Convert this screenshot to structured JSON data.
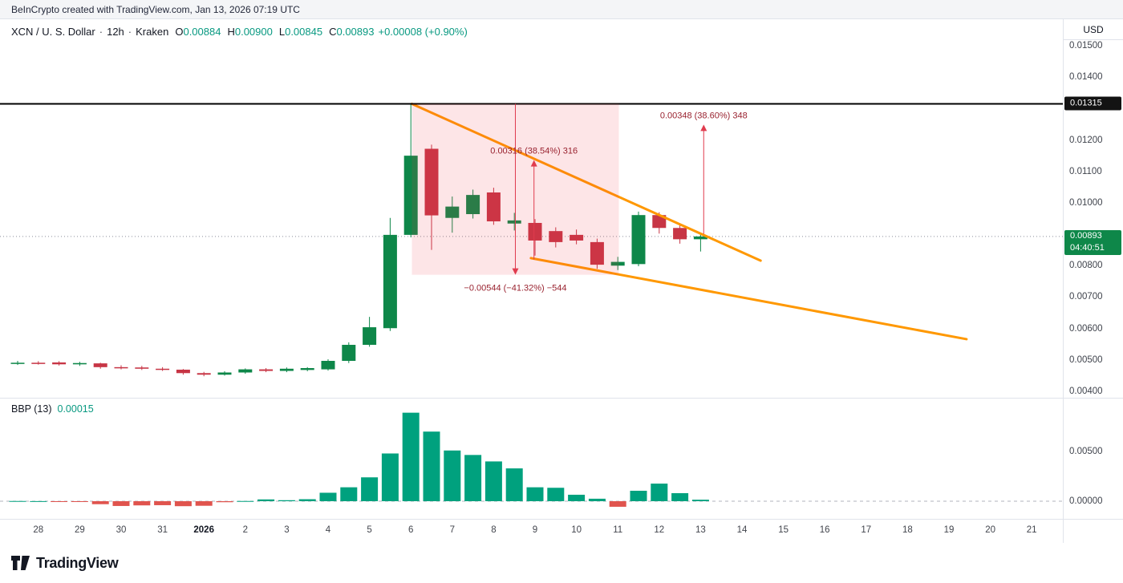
{
  "header": {
    "attribution": "BeInCrypto created with TradingView.com, Jan 13, 2026 07:19 UTC"
  },
  "legend": {
    "symbol": "XCN / U. S. Dollar",
    "sep": "·",
    "interval": "12h",
    "exchange": "Kraken",
    "o_label": "O",
    "open": "0.00884",
    "h_label": "H",
    "high": "0.00900",
    "l_label": "L",
    "low": "0.00845",
    "c_label": "C",
    "close": "0.00893",
    "change": "+0.00008 (+0.90%)"
  },
  "price_axis": {
    "currency": "USD",
    "black_badge": {
      "text": "0.01315"
    },
    "current_badge": {
      "price_text": "0.00893",
      "countdown": "04:40:51"
    }
  },
  "indicator_legend": {
    "title": "BBP (13)",
    "value": "0.00015"
  },
  "footer": {
    "brand": "TradingView"
  },
  "colors": {
    "up": "#0e8749",
    "down": "#c73545",
    "bbp_up": "#00a17e",
    "bbp_down": "#e0544e",
    "value_text": "#089981",
    "trendline": "#ff9800",
    "measure_fill": "rgba(242,54,69,0.13)",
    "measure_text": "#99222f",
    "measure_arrow": "#e03b4e",
    "level": "#000000",
    "dotted": "#8b8f9b",
    "border": "#e0e3eb",
    "zero_dash": "#b0b3bc",
    "axis_text": "#3f434c"
  },
  "chart_data": {
    "type": "candlestick",
    "title": "XCN / U. S. Dollar · 12h · Kraken",
    "ylabel": "USD",
    "price_range_shown": [
      0.004,
      0.0155
    ],
    "grid": false,
    "candles_columns": [
      "time",
      "open",
      "high",
      "low",
      "close"
    ],
    "candles": [
      [
        "12-27 12:00",
        0.0049,
        0.00497,
        0.00484,
        0.00491
      ],
      [
        "12-28 00:00",
        0.00491,
        0.00496,
        0.00485,
        0.00489
      ],
      [
        "12-28 12:00",
        0.00492,
        0.00496,
        0.00482,
        0.00486
      ],
      [
        "12-29 00:00",
        0.00486,
        0.00494,
        0.00481,
        0.0049
      ],
      [
        "12-29 12:00",
        0.00489,
        0.00491,
        0.00472,
        0.00477
      ],
      [
        "12-30 00:00",
        0.00477,
        0.00483,
        0.0047,
        0.00476
      ],
      [
        "12-30 12:00",
        0.00476,
        0.00481,
        0.00468,
        0.00472
      ],
      [
        "12-31 00:00",
        0.00472,
        0.00477,
        0.00465,
        0.00469
      ],
      [
        "12-31 12:00",
        0.00469,
        0.00471,
        0.00453,
        0.00458
      ],
      [
        "01-01 00:00",
        0.00458,
        0.00462,
        0.00448,
        0.00453
      ],
      [
        "01-01 12:00",
        0.00453,
        0.00464,
        0.0045,
        0.0046
      ],
      [
        "01-02 00:00",
        0.0046,
        0.00473,
        0.00456,
        0.0047
      ],
      [
        "01-02 12:00",
        0.0047,
        0.00474,
        0.00461,
        0.00465
      ],
      [
        "01-03 00:00",
        0.00465,
        0.00476,
        0.00461,
        0.00472
      ],
      [
        "01-03 12:00",
        0.00468,
        0.00477,
        0.00464,
        0.00474
      ],
      [
        "01-04 00:00",
        0.0047,
        0.00502,
        0.00466,
        0.00497
      ],
      [
        "01-04 12:00",
        0.00497,
        0.00556,
        0.0049,
        0.00548
      ],
      [
        "01-05 00:00",
        0.00548,
        0.00637,
        0.00542,
        0.00604
      ],
      [
        "01-05 12:00",
        0.00601,
        0.00952,
        0.00592,
        0.00898
      ],
      [
        "01-06 00:00",
        0.00898,
        0.01315,
        0.0089,
        0.0115
      ],
      [
        "01-06 12:00",
        0.01172,
        0.01185,
        0.0085,
        0.0096
      ],
      [
        "01-07 00:00",
        0.00952,
        0.0102,
        0.00905,
        0.00988
      ],
      [
        "01-07 12:00",
        0.00964,
        0.01042,
        0.0095,
        0.01025
      ],
      [
        "01-08 00:00",
        0.01033,
        0.01048,
        0.0093,
        0.00941
      ],
      [
        "01-08 12:00",
        0.00934,
        0.00968,
        0.00912,
        0.00944
      ],
      [
        "01-09 00:00",
        0.00936,
        0.00948,
        0.00832,
        0.0088
      ],
      [
        "01-09 12:00",
        0.0091,
        0.00922,
        0.00858,
        0.00875
      ],
      [
        "01-10 00:00",
        0.00898,
        0.00915,
        0.00868,
        0.0088
      ],
      [
        "01-10 12:00",
        0.00875,
        0.00886,
        0.0079,
        0.00803
      ],
      [
        "01-11 00:00",
        0.008,
        0.00828,
        0.00786,
        0.00812
      ],
      [
        "01-11 12:00",
        0.00805,
        0.00972,
        0.00798,
        0.00961
      ],
      [
        "01-12 00:00",
        0.00961,
        0.0097,
        0.00902,
        0.0092
      ],
      [
        "01-12 12:00",
        0.0092,
        0.00932,
        0.0087,
        0.00884
      ],
      [
        "01-13 00:00",
        0.00884,
        0.009,
        0.00845,
        0.00893
      ]
    ],
    "indicator": {
      "name": "BBP",
      "length": 13,
      "current_value": 0.00015,
      "values": [
        2e-05,
        1e-05,
        -2e-05,
        -1e-05,
        -0.0003,
        -0.00048,
        -0.00042,
        -0.0004,
        -0.0005,
        -0.00046,
        -0.0001,
        2e-05,
        0.00018,
        0.0001,
        0.0002,
        0.00085,
        0.0014,
        0.0024,
        0.0048,
        0.0089,
        0.007,
        0.0051,
        0.00465,
        0.004,
        0.0033,
        0.0014,
        0.00135,
        0.00065,
        0.00025,
        -0.00056,
        0.00105,
        0.00177,
        0.00081,
        0.00015
      ],
      "axis_ticks": [
        {
          "label": "0.00500",
          "value": 0.005
        },
        {
          "label": "0.00000",
          "value": 0
        }
      ]
    },
    "price_ticks": [
      {
        "label": "0.01500",
        "price": 0.015
      },
      {
        "label": "0.01400",
        "price": 0.014
      },
      {
        "label": "0.01200",
        "price": 0.012
      },
      {
        "label": "0.01100",
        "price": 0.011
      },
      {
        "label": "0.01000",
        "price": 0.01
      },
      {
        "label": "0.00800",
        "price": 0.008
      },
      {
        "label": "0.00700",
        "price": 0.007
      },
      {
        "label": "0.00600",
        "price": 0.006
      },
      {
        "label": "0.00500",
        "price": 0.005
      },
      {
        "label": "0.00400",
        "price": 0.004
      }
    ],
    "time_ticks": [
      {
        "label": "28",
        "i": 1
      },
      {
        "label": "29",
        "i": 3
      },
      {
        "label": "30",
        "i": 5
      },
      {
        "label": "31",
        "i": 7
      },
      {
        "label": "2026",
        "i": 9,
        "bold": true
      },
      {
        "label": "2",
        "i": 11
      },
      {
        "label": "3",
        "i": 13
      },
      {
        "label": "4",
        "i": 15
      },
      {
        "label": "5",
        "i": 17
      },
      {
        "label": "6",
        "i": 19
      },
      {
        "label": "7",
        "i": 21
      },
      {
        "label": "8",
        "i": 23
      },
      {
        "label": "9",
        "i": 25
      },
      {
        "label": "10",
        "i": 27
      },
      {
        "label": "11",
        "i": 29
      },
      {
        "label": "12",
        "i": 31
      },
      {
        "label": "13",
        "i": 33
      },
      {
        "label": "14",
        "i": 35
      },
      {
        "label": "15",
        "i": 37
      },
      {
        "label": "16",
        "i": 39
      },
      {
        "label": "17",
        "i": 41
      },
      {
        "label": "18",
        "i": 43
      },
      {
        "label": "19",
        "i": 45
      },
      {
        "label": "20",
        "i": 47
      },
      {
        "label": "21",
        "i": 49
      }
    ],
    "levels": {
      "resistance_line": {
        "price": 0.01315,
        "label": "0.01315"
      },
      "current_price": {
        "price": 0.00893,
        "label": "0.00893",
        "countdown": "04:40:51"
      }
    },
    "trendlines": [
      {
        "from_i": 19.05,
        "from_price": 0.01315,
        "to_i": 35.9,
        "to_price": 0.00816
      },
      {
        "from_i": 24.8,
        "from_price": 0.00824,
        "to_i": 45.85,
        "to_price": 0.00566
      }
    ],
    "measurements": [
      {
        "kind": "box-down",
        "x1_i": 19.05,
        "x2_i": 29.05,
        "top_price": 0.01315,
        "bottom_price": 0.00771,
        "label": "−0.00544 (−41.32%) −544"
      },
      {
        "kind": "arrow-up",
        "x_i": 24.95,
        "from_price": 0.0082,
        "to_price": 0.01136,
        "label": "0.00316 (38.54%) 316"
      },
      {
        "kind": "arrow-up",
        "x_i": 33.15,
        "from_price": 0.00901,
        "to_price": 0.01249,
        "label": "0.00348 (38.60%) 348"
      }
    ]
  }
}
